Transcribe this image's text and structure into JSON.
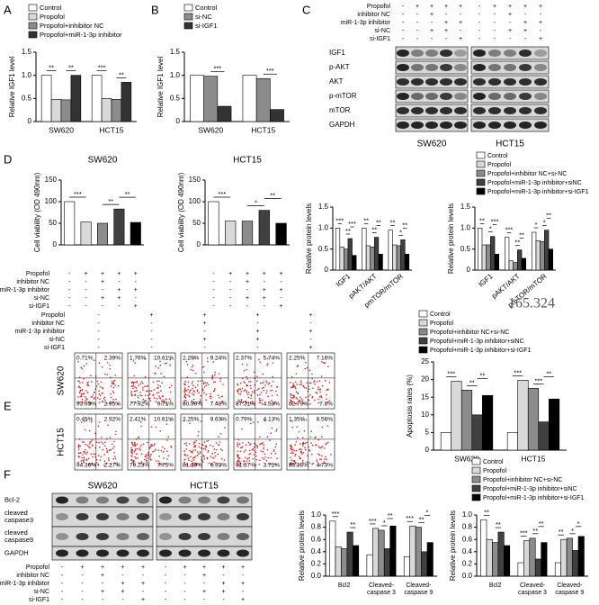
{
  "panel_labels": [
    "A",
    "B",
    "C",
    "D",
    "E",
    "F"
  ],
  "chart_data": [
    {
      "type": "bar",
      "y_label": "Relative IGF1 level",
      "categories": [
        "SW620",
        "HCT15"
      ],
      "ylim": [
        0,
        1.5
      ],
      "yticks": [
        0,
        0.5,
        {
          "value": 1,
          "label": "1.0"
        },
        1.5
      ],
      "series": [
        {
          "name": "Control",
          "color": "#ffffff",
          "values": [
            1.0,
            1.0
          ]
        },
        {
          "name": "Propofol",
          "color": "#d9d9d9",
          "values": [
            0.48,
            0.5
          ]
        },
        {
          "name": "Propofol+inhibitor NC",
          "color": "#8c8c8c",
          "values": [
            0.47,
            0.48
          ]
        },
        {
          "name": "Propofol+miR-1-3p inhibitor",
          "color": "#333333",
          "values": [
            1.0,
            0.85
          ]
        }
      ],
      "significance": [
        {
          "text": "**",
          "category": 0,
          "from": 0,
          "to": 1
        },
        {
          "text": "**",
          "category": 0,
          "from": 2,
          "to": 3
        },
        {
          "text": "***",
          "category": 1,
          "from": 0,
          "to": 1
        },
        {
          "text": "**",
          "category": 1,
          "from": 2,
          "to": 3
        }
      ]
    },
    {
      "type": "bar",
      "y_label": "Relative IGF1 level",
      "categories": [
        "SW620",
        "HCT15"
      ],
      "ylim": [
        0,
        1.5
      ],
      "yticks": [
        0,
        0.5,
        {
          "value": 1,
          "label": "1.0"
        },
        1.5
      ],
      "series": [
        {
          "name": "Control",
          "color": "#ffffff",
          "values": [
            1.0,
            1.0
          ]
        },
        {
          "name": "si-NC",
          "color": "#8c8c8c",
          "values": [
            0.98,
            0.93
          ]
        },
        {
          "name": "si-IGF1",
          "color": "#333333",
          "values": [
            0.33,
            0.26
          ]
        }
      ],
      "significance": [
        {
          "text": "***",
          "category": 0,
          "from": 1,
          "to": 2
        },
        {
          "text": "***",
          "category": 1,
          "from": 1,
          "to": 2
        }
      ]
    },
    {
      "type": "bar",
      "titles": [
        "SW620",
        "HCT15"
      ],
      "y_label": "Cell viability (OD 490nm)",
      "ylim": [
        0,
        150
      ],
      "yticks": [
        0,
        50,
        100,
        150
      ],
      "colors": [
        "#ffffff",
        "#d9d9d9",
        "#8c8c8c",
        "#404040",
        "#000000"
      ],
      "values": [
        [
          100,
          53,
          50,
          83,
          52
        ],
        [
          100,
          55,
          55,
          80,
          50
        ]
      ],
      "significance": [
        {
          "text": "***",
          "subplot": 0,
          "from": 0,
          "to": 1
        },
        {
          "text": "**",
          "subplot": 0,
          "from": 2,
          "to": 3
        },
        {
          "text": "**",
          "subplot": 0,
          "from": 3,
          "to": 4
        },
        {
          "text": "***",
          "subplot": 1,
          "from": 0,
          "to": 1
        },
        {
          "text": "*",
          "subplot": 1,
          "from": 2,
          "to": 3
        },
        {
          "text": "**",
          "subplot": 1,
          "from": 3,
          "to": 4
        }
      ]
    },
    {
      "type": "bar",
      "y_label": "Relative protein levels",
      "categories": [
        "IGF1",
        "pAKT/AKT",
        "pmTOR/mTOR"
      ],
      "ylim": [
        0,
        1.5
      ],
      "yticks": [
        0,
        0.5,
        {
          "value": 1,
          "label": "1.0"
        },
        1.5
      ],
      "series": [
        {
          "name": "Control",
          "color": "#ffffff",
          "values": [
            [
              1.0,
              1.0,
              0.95
            ],
            [
              1.0,
              0.78,
              0.9
            ]
          ]
        },
        {
          "name": "Propofol",
          "color": "#d9d9d9",
          "values": [
            [
              0.55,
              0.58,
              0.6
            ],
            [
              0.6,
              0.22,
              0.7
            ]
          ]
        },
        {
          "name": "Propofol+inhibitor NC+si-NC",
          "color": "#8c8c8c",
          "values": [
            [
              0.5,
              0.55,
              0.58
            ],
            [
              0.6,
              0.18,
              0.68
            ]
          ]
        },
        {
          "name": "Propofol+miR-1-3p inhibitor+siNC",
          "color": "#404040",
          "values": [
            [
              0.75,
              0.78,
              0.72
            ],
            [
              0.8,
              0.48,
              0.95
            ]
          ]
        },
        {
          "name": "Propofol+miR-1-3p inhibitor+si-IGF1",
          "color": "#000000",
          "values": [
            [
              0.35,
              0.38,
              0.38
            ],
            [
              0.38,
              0.28,
              0.5
            ]
          ]
        }
      ],
      "significance": [
        {
          "text": "***",
          "subplot": 0,
          "category": 0,
          "from": 0,
          "to": 1
        },
        {
          "text": "**",
          "subplot": 0,
          "category": 0,
          "from": 2,
          "to": 3
        },
        {
          "text": "***",
          "subplot": 0,
          "category": 0,
          "from": 3,
          "to": 4
        },
        {
          "text": "**",
          "subplot": 0,
          "category": 1,
          "from": 0,
          "to": 1
        },
        {
          "text": "**",
          "subplot": 0,
          "category": 1,
          "from": 2,
          "to": 3
        },
        {
          "text": "**",
          "subplot": 0,
          "category": 1,
          "from": 3,
          "to": 4
        },
        {
          "text": "**",
          "subplot": 0,
          "category": 2,
          "from": 0,
          "to": 1
        },
        {
          "text": "*",
          "subplot": 0,
          "category": 2,
          "from": 2,
          "to": 3
        },
        {
          "text": "**",
          "subplot": 0,
          "category": 2,
          "from": 3,
          "to": 4
        },
        {
          "text": "**",
          "subplot": 1,
          "category": 0,
          "from": 0,
          "to": 1
        },
        {
          "text": "*",
          "subplot": 1,
          "category": 0,
          "from": 2,
          "to": 3
        },
        {
          "text": "***",
          "subplot": 1,
          "category": 0,
          "from": 3,
          "to": 4
        },
        {
          "text": "***",
          "subplot": 1,
          "category": 1,
          "from": 0,
          "to": 1
        },
        {
          "text": "**",
          "subplot": 1,
          "category": 1,
          "from": 2,
          "to": 3
        },
        {
          "text": "**",
          "subplot": 1,
          "category": 1,
          "from": 3,
          "to": 4
        },
        {
          "text": "*",
          "subplot": 1,
          "category": 2,
          "from": 0,
          "to": 1
        },
        {
          "text": "*",
          "subplot": 1,
          "category": 2,
          "from": 2,
          "to": 3
        },
        {
          "text": "**",
          "subplot": 1,
          "category": 2,
          "from": 3,
          "to": 4
        }
      ]
    },
    {
      "type": "bar",
      "y_label": "Apoptosis rates (%)",
      "categories": [
        "SW620",
        "HCT15"
      ],
      "ylim": [
        0,
        25
      ],
      "yticks": [
        0,
        5,
        10,
        15,
        20,
        25
      ],
      "series": [
        {
          "name": "Control",
          "color": "#ffffff",
          "values": [
            5,
            5
          ]
        },
        {
          "name": "Propofol",
          "color": "#d9d9d9",
          "values": [
            19.5,
            19.8
          ]
        },
        {
          "name": "Propofol+inhibitor NC+si-NC",
          "color": "#8c8c8c",
          "values": [
            17,
            17.5
          ]
        },
        {
          "name": "Propofol+miR-1-3p inhibitor+siNC",
          "color": "#404040",
          "values": [
            10,
            8
          ]
        },
        {
          "name": "Propofol+miR-1-3p inhibitor+si-IGF1",
          "color": "#000000",
          "values": [
            15.5,
            14.5
          ]
        }
      ],
      "significance": [
        {
          "text": "***",
          "category": 0,
          "from": 0,
          "to": 1
        },
        {
          "text": "**",
          "category": 0,
          "from": 2,
          "to": 3
        },
        {
          "text": "**",
          "category": 0,
          "from": 3,
          "to": 4
        },
        {
          "text": "***",
          "category": 1,
          "from": 0,
          "to": 1
        },
        {
          "text": "***",
          "category": 1,
          "from": 2,
          "to": 3
        },
        {
          "text": "**",
          "category": 1,
          "from": 3,
          "to": 4
        }
      ]
    },
    {
      "type": "bar",
      "y_label": "Relative protein levels",
      "categories": [
        "Bcl2",
        "Cleaved-caspase 3",
        "Cleaved-caspase 9"
      ],
      "ylim": [
        0,
        1
      ],
      "yticks": [
        {
          "value": 0,
          "label": "0.0"
        },
        0.2,
        0.4,
        0.6,
        0.8,
        {
          "value": 1,
          "label": "1.0"
        }
      ],
      "series": [
        {
          "name": "Control",
          "color": "#ffffff",
          "values": [
            [
              0.9,
              0.35,
              0.32
            ],
            [
              0.92,
              0.22,
              0.22
            ]
          ]
        },
        {
          "name": "Propofol",
          "color": "#d9d9d9",
          "values": [
            [
              0.48,
              0.78,
              0.82
            ],
            [
              0.6,
              0.58,
              0.6
            ]
          ]
        },
        {
          "name": "Propofol+inhibitor NC+si-NC",
          "color": "#8c8c8c",
          "values": [
            [
              0.45,
              0.75,
              0.8
            ],
            [
              0.55,
              0.62,
              0.62
            ]
          ]
        },
        {
          "name": "Propofol+miR-1-3p inhibitor+siNC",
          "color": "#404040",
          "values": [
            [
              0.72,
              0.45,
              0.4
            ],
            [
              0.72,
              0.28,
              0.42
            ]
          ]
        },
        {
          "name": "Propofol+miR-1-3p inhibitor+si-IGF1",
          "color": "#000000",
          "values": [
            [
              0.5,
              0.82,
              0.55
            ],
            [
              0.5,
              0.55,
              0.65
            ]
          ]
        }
      ],
      "significance": [
        {
          "text": "***",
          "subplot": 0,
          "category": 0,
          "from": 0,
          "to": 1
        },
        {
          "text": "**",
          "subplot": 0,
          "category": 0,
          "from": 3,
          "to": 4
        },
        {
          "text": "***",
          "subplot": 0,
          "category": 1,
          "from": 0,
          "to": 1
        },
        {
          "text": "*",
          "subplot": 0,
          "category": 1,
          "from": 2,
          "to": 3
        },
        {
          "text": "**",
          "subplot": 0,
          "category": 1,
          "from": 3,
          "to": 4
        },
        {
          "text": "***",
          "subplot": 0,
          "category": 2,
          "from": 0,
          "to": 1
        },
        {
          "text": "**",
          "subplot": 0,
          "category": 2,
          "from": 2,
          "to": 3
        },
        {
          "text": "*",
          "subplot": 0,
          "category": 2,
          "from": 3,
          "to": 4
        },
        {
          "text": "**",
          "subplot": 1,
          "category": 0,
          "from": 0,
          "to": 1
        },
        {
          "text": "**",
          "subplot": 1,
          "category": 0,
          "from": 2,
          "to": 3
        },
        {
          "text": "***",
          "subplot": 1,
          "category": 1,
          "from": 0,
          "to": 1
        },
        {
          "text": "**",
          "subplot": 1,
          "category": 1,
          "from": 2,
          "to": 3
        },
        {
          "text": "**",
          "subplot": 1,
          "category": 1,
          "from": 3,
          "to": 4
        },
        {
          "text": "**",
          "subplot": 1,
          "category": 2,
          "from": 0,
          "to": 1
        },
        {
          "text": "*",
          "subplot": 1,
          "category": 2,
          "from": 2,
          "to": 3
        },
        {
          "text": "*",
          "subplot": 1,
          "category": 2,
          "from": 3,
          "to": 4
        }
      ]
    }
  ],
  "treatments": {
    "labels": [
      "Propofol",
      "inhibitor NC",
      "miR-1-3p inhibitor",
      "si-NC",
      "si-IGF1"
    ],
    "signs": [
      [
        "-",
        "+",
        "+",
        "+",
        "+"
      ],
      [
        "-",
        "-",
        "+",
        "-",
        "-"
      ],
      [
        "-",
        "-",
        "-",
        "+",
        "+"
      ],
      [
        "-",
        "-",
        "+",
        "+",
        "-"
      ],
      [
        "-",
        "-",
        "-",
        "-",
        "+"
      ]
    ]
  },
  "blot_c": {
    "cell_lines": [
      "SW620",
      "HCT15"
    ],
    "rows": [
      "IGF1",
      "p-AKT",
      "AKT",
      "p-mTOR",
      "mTOR",
      "GAPDH"
    ]
  },
  "blot_f": {
    "cell_lines": [
      "SW620",
      "HCT15"
    ],
    "rows": [
      "Bcl-2",
      "cleaved caspase3",
      "cleaved caspase9",
      "GAPDH"
    ]
  },
  "flow": {
    "row_labels": [
      "SW620",
      "HCT15"
    ],
    "quadrants": [
      [
        [
          "0.71%",
          "2.39%",
          "93.95%",
          "2.95%"
        ],
        [
          "1.76%",
          "10.61%",
          "77.92%",
          "9.71%"
        ],
        [
          "2.29%",
          "9.24%",
          "80.99%",
          "7.48%"
        ],
        [
          "2.37%",
          "5.74%",
          "87.31%",
          "4.58%"
        ],
        [
          "2.25%",
          "7.16%",
          "82.79%",
          "7.8%"
        ]
      ],
      [
        [
          "0.45%",
          "2.92%",
          "94.36%",
          "2.27%"
        ],
        [
          "2.41%",
          "10.61%",
          "79.23%",
          "7.75%"
        ],
        [
          "2.25%",
          "9.63%",
          "81.19%",
          "6.93%"
        ],
        [
          "0.79%",
          "4.13%",
          "91.37%",
          "3.71%"
        ],
        [
          "1.35%",
          "8.56%",
          "85.36%",
          "4.73%"
        ]
      ]
    ]
  },
  "extra_text": "165.324"
}
